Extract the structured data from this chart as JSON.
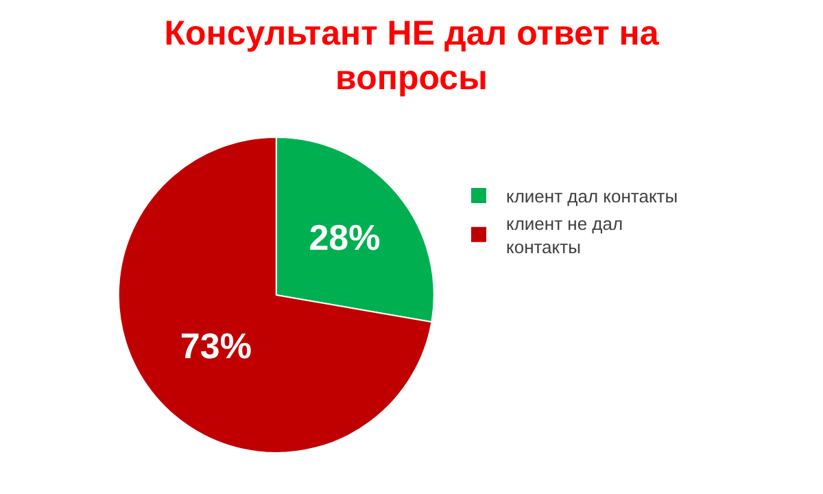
{
  "chart_data": {
    "type": "pie",
    "title": "Консультант НЕ дал ответ на вопросы",
    "categories": [
      "клиент дал контакты",
      "клиент не дал контакты"
    ],
    "values": [
      28,
      73
    ],
    "colors": [
      "#00b050",
      "#c00000"
    ],
    "value_labels": [
      "28%",
      "73%"
    ],
    "legend": "right"
  }
}
